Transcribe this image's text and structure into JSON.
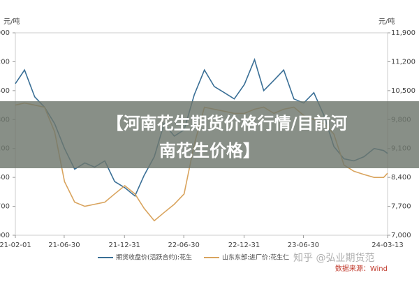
{
  "chart_data": {
    "type": "line",
    "y_unit": "元/吨",
    "x": [
      "21-02-01",
      "21-03-01",
      "21-04-01",
      "21-05-01",
      "21-06-01",
      "21-07-01",
      "21-08-01",
      "21-09-01",
      "21-10-01",
      "21-11-01",
      "21-12-01",
      "22-01-01",
      "22-02-01",
      "22-03-01",
      "22-04-01",
      "22-05-01",
      "22-06-01",
      "22-07-01",
      "22-08-01",
      "22-09-01",
      "22-10-01",
      "22-11-01",
      "22-12-01",
      "23-01-01",
      "23-02-01",
      "23-03-01",
      "23-04-01",
      "23-05-01",
      "23-06-01",
      "23-07-01",
      "23-08-01",
      "23-09-01",
      "23-10-01",
      "23-11-01",
      "23-12-01",
      "24-01-01",
      "24-02-01",
      "24-03-01",
      "24-03-13"
    ],
    "series": [
      {
        "name": "期货收盘价(活跃合约):花生",
        "color": "#3a6f96",
        "values": [
          10670,
          11000,
          10350,
          10100,
          9700,
          9100,
          8600,
          8750,
          8650,
          8800,
          8300,
          8150,
          7950,
          8450,
          8900,
          9700,
          9400,
          9550,
          10400,
          11000,
          10600,
          10450,
          10300,
          10650,
          11250,
          10500,
          10750,
          11000,
          10300,
          10200,
          10450,
          9900,
          9150,
          8850,
          8800,
          8900,
          9100,
          9050,
          8980
        ]
      },
      {
        "name": "山东东部:进厂价:花生仁",
        "color": "#d9a45e",
        "values": [
          10150,
          10200,
          10150,
          10100,
          9500,
          8300,
          7800,
          7700,
          7750,
          7800,
          8000,
          8200,
          8000,
          7650,
          7350,
          7550,
          7750,
          8000,
          9200,
          10100,
          10050,
          10000,
          9950,
          9950,
          10050,
          10100,
          9950,
          10050,
          10100,
          9900,
          9800,
          9700,
          9450,
          8700,
          8550,
          8470,
          8400,
          8400,
          8500
        ]
      }
    ],
    "xlim": [
      "21-02-01",
      "24-03-13"
    ],
    "xticks": [
      "21-02-01",
      "21-06-30",
      "21-12-31",
      "22-06-30",
      "22-12-31",
      "23-06-30",
      "24-03-13"
    ],
    "ylim": [
      7000,
      11900
    ],
    "yticks": [
      {
        "value": 7000,
        "label": "7,000"
      },
      {
        "value": 7700,
        "label": "7,700"
      },
      {
        "value": 8400,
        "label": "8,400"
      },
      {
        "value": 9100,
        "label": "9,100"
      },
      {
        "value": 9800,
        "label": "9,800"
      },
      {
        "value": 10500,
        "label": "10,500"
      },
      {
        "value": 11200,
        "label": "11,200"
      },
      {
        "value": 11900,
        "label": "11,900"
      }
    ],
    "source": "数据来源：Wind",
    "watermark": "知乎 @弘业期货范",
    "banner_lines": [
      "【河南花生期货价格行情/目前河",
      "南花生价格】"
    ]
  }
}
